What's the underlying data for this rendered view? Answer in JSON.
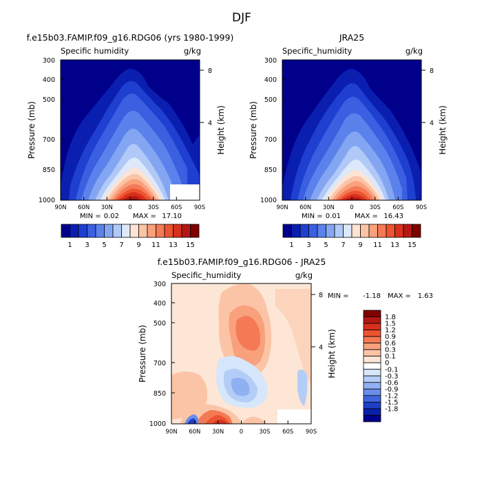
{
  "figure_title": "DJF",
  "chart_data": [
    {
      "type": "heatmap",
      "title": "f.e15b03.FAMIP.f09_g16.RDG06 (yrs 1980-1999)",
      "subtitle_left": "Specific humidity",
      "units": "g/kg",
      "ylabel": "Pressure (mb)",
      "y2label": "Height (km)",
      "xticks": [
        "90N",
        "60N",
        "30N",
        "0",
        "30S",
        "60S",
        "90S"
      ],
      "yticks": [
        "300",
        "400",
        "500",
        "700",
        "850",
        "1000"
      ],
      "y2ticks": [
        "8",
        "4"
      ],
      "min_label": "MIN =",
      "min_value": "0.02",
      "max_label": "MAX =",
      "max_value": "17.10",
      "contour_levels": [
        1,
        2,
        3,
        4,
        5,
        6,
        7,
        8,
        9,
        10,
        11,
        12,
        13,
        14,
        15,
        16
      ],
      "colorbar_labels": [
        "1",
        "3",
        "5",
        "7",
        "9",
        "11",
        "13",
        "15"
      ],
      "colorbar_colors": [
        "#00008b",
        "#0a1fb0",
        "#1e3fd0",
        "#3a5fe0",
        "#5b82ec",
        "#84a6f2",
        "#b0c9f7",
        "#dde8fb",
        "#fde3d4",
        "#fcc4a6",
        "#f9a07c",
        "#f47a55",
        "#ec5330",
        "#d8301d",
        "#b51813",
        "#800000"
      ],
      "ylim": [
        300,
        1000
      ],
      "xlim": [
        "90N",
        "90S"
      ]
    },
    {
      "type": "heatmap",
      "title": "JRA25",
      "subtitle_left": "Specific_humidity",
      "units": "g/kg",
      "ylabel": "Pressure (mb)",
      "y2label": "Height (km)",
      "xticks": [
        "90N",
        "60N",
        "30N",
        "0",
        "30S",
        "60S",
        "90S"
      ],
      "yticks": [
        "300",
        "400",
        "500",
        "700",
        "850",
        "1000"
      ],
      "y2ticks": [
        "8",
        "4"
      ],
      "min_label": "MIN =",
      "min_value": "0.01",
      "max_label": "MAX =",
      "max_value": "16.43",
      "contour_levels": [
        1,
        2,
        3,
        4,
        5,
        6,
        7,
        8,
        9,
        10,
        11,
        12,
        13,
        14,
        15,
        16
      ],
      "colorbar_labels": [
        "1",
        "3",
        "5",
        "7",
        "9",
        "11",
        "13",
        "15"
      ],
      "colorbar_colors": [
        "#00008b",
        "#0a1fb0",
        "#1e3fd0",
        "#3a5fe0",
        "#5b82ec",
        "#84a6f2",
        "#b0c9f7",
        "#dde8fb",
        "#fde3d4",
        "#fcc4a6",
        "#f9a07c",
        "#f47a55",
        "#ec5330",
        "#d8301d",
        "#b51813",
        "#800000"
      ],
      "ylim": [
        300,
        1000
      ],
      "xlim": [
        "90N",
        "90S"
      ]
    },
    {
      "type": "heatmap",
      "title": "f.e15b03.FAMIP.f09_g16.RDG06 - JRA25",
      "subtitle_left": "Specific_humidity",
      "units": "g/kg",
      "ylabel": "Pressure (mb)",
      "y2label": "Height (km)",
      "xticks": [
        "90N",
        "60N",
        "30N",
        "0",
        "30S",
        "60S",
        "90S"
      ],
      "yticks": [
        "300",
        "400",
        "500",
        "700",
        "850",
        "1000"
      ],
      "y2ticks": [
        "8",
        "4"
      ],
      "min_label": "MIN =",
      "min_value": "-1.18",
      "max_label": "MAX =",
      "max_value": "1.63",
      "colorbar_labels": [
        "1.8",
        "1.5",
        "1.2",
        "0.9",
        "0.6",
        "0.3",
        "0.1",
        "0",
        "-0.1",
        "-0.3",
        "-0.6",
        "-0.9",
        "-1.2",
        "-1.5",
        "-1.8"
      ],
      "colorbar_colors": [
        "#800000",
        "#b51813",
        "#d8301d",
        "#ec5330",
        "#f47a55",
        "#f9a07c",
        "#fcc4a6",
        "#fde6d6",
        "#ffffff",
        "#d6e6fb",
        "#b4cdf6",
        "#8fb0f1",
        "#6a8ee9",
        "#3f66dd",
        "#1f3fc8",
        "#0a1fa8",
        "#00008b"
      ],
      "ylim": [
        300,
        1000
      ],
      "xlim": [
        "90N",
        "90S"
      ]
    }
  ]
}
